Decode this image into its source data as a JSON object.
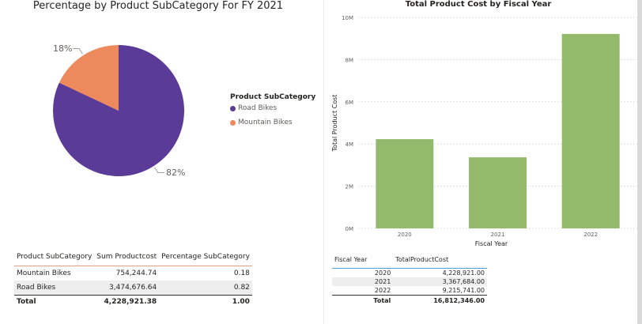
{
  "pie_chart": {
    "title": "Percentage by Product SubCategory For FY 2021",
    "legend_title": "Product SubCategory"
  },
  "bar_chart": {
    "title": "Total Product Cost by Fiscal Year"
  },
  "chart_data": [
    {
      "type": "pie",
      "title": "Percentage by Product SubCategory For FY 2021",
      "legend_title": "Product SubCategory",
      "legend_position": "right",
      "slices": [
        {
          "label": "Road Bikes",
          "value": 82,
          "display": "82%",
          "color": "#5a3b97"
        },
        {
          "label": "Mountain Bikes",
          "value": 18,
          "display": "18%",
          "color": "#ec8a5e"
        }
      ]
    },
    {
      "type": "bar",
      "title": "Total Product Cost by Fiscal Year",
      "xlabel": "Fiscal Year",
      "ylabel": "Total Product Cost",
      "categories": [
        "2020",
        "2021",
        "2022"
      ],
      "values": [
        4228921,
        3367684,
        9215741
      ],
      "ylim": [
        0,
        10000000
      ],
      "yticks": [
        "0M",
        "2M",
        "4M",
        "6M",
        "8M",
        "10M"
      ],
      "grid": true,
      "color": "#93b96a"
    }
  ],
  "table1": {
    "headers": [
      "Product SubCategory",
      "Sum Productcost",
      "Percentage SubCategory"
    ],
    "rows": [
      [
        "Mountain Bikes",
        "754,244.74",
        "0.18"
      ],
      [
        "Road Bikes",
        "3,474,676.64",
        "0.82"
      ]
    ],
    "total": [
      "Total",
      "4,228,921.38",
      "1.00"
    ]
  },
  "table2": {
    "headers": [
      "Fiscal Year",
      "TotalProductCost"
    ],
    "rows": [
      [
        "2020",
        "4,228,921.00"
      ],
      [
        "2021",
        "3,367,684.00"
      ],
      [
        "2022",
        "9,215,741.00"
      ]
    ],
    "total": [
      "Total",
      "16,812,346.00"
    ]
  }
}
